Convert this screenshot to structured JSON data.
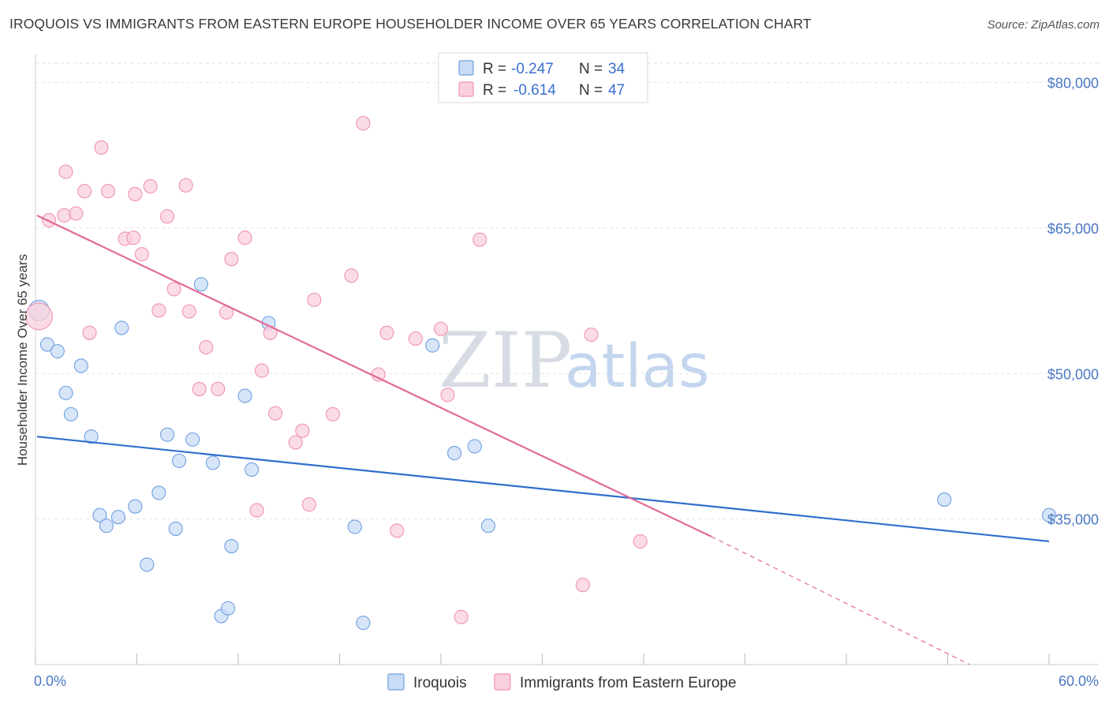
{
  "header": {
    "title": "IROQUOIS VS IMMIGRANTS FROM EASTERN EUROPE HOUSEHOLDER INCOME OVER 65 YEARS CORRELATION CHART",
    "source": "Source: ZipAtlas.com"
  },
  "watermark": {
    "zip": "ZIP",
    "atlas": "atlas"
  },
  "legend": {
    "r_label": "R =",
    "n_label": "N =",
    "series": [
      {
        "r": "-0.247",
        "n": "34"
      },
      {
        "r": "-0.614",
        "n": "47"
      }
    ]
  },
  "bottom_legend": [
    "Iroquois",
    "Immigrants from Eastern Europe"
  ],
  "chart_data": {
    "type": "scatter",
    "ylabel": "Householder Income Over 65 years",
    "xlim": [
      0,
      60
    ],
    "ylim": [
      20000,
      82000
    ],
    "x_tick_labels": [
      "0.0%",
      "60.0%"
    ],
    "y_ticks": [
      35000,
      50000,
      65000,
      80000
    ],
    "y_tick_labels": [
      "$35,000",
      "$50,000",
      "$65,000",
      "$80,000"
    ],
    "grid": "horizontal dashed",
    "legend_position": "top-center",
    "colors": {
      "iroquois": "#6fa0e0",
      "iroquois_fill": "#c9dcf5",
      "eastern": "#f092b0",
      "eastern_fill": "#fad0de",
      "iroquois_line": "#2f6fcc",
      "eastern_line": "#e06a95"
    },
    "series": [
      {
        "name": "Iroquois",
        "points": [
          [
            0.2,
            56500
          ],
          [
            0.7,
            53000
          ],
          [
            1.3,
            52300
          ],
          [
            1.8,
            48000
          ],
          [
            2.1,
            45800
          ],
          [
            2.7,
            50800
          ],
          [
            3.3,
            43500
          ],
          [
            3.8,
            35400
          ],
          [
            4.2,
            34300
          ],
          [
            4.9,
            35200
          ],
          [
            5.1,
            54700
          ],
          [
            5.9,
            36300
          ],
          [
            6.6,
            30300
          ],
          [
            7.3,
            37700
          ],
          [
            7.8,
            43700
          ],
          [
            8.3,
            34000
          ],
          [
            8.5,
            41000
          ],
          [
            9.3,
            43200
          ],
          [
            9.8,
            59200
          ],
          [
            10.5,
            40800
          ],
          [
            11.0,
            25000
          ],
          [
            11.4,
            25800
          ],
          [
            11.6,
            32200
          ],
          [
            12.4,
            47700
          ],
          [
            12.8,
            40100
          ],
          [
            13.8,
            55200
          ],
          [
            18.9,
            34200
          ],
          [
            19.4,
            24300
          ],
          [
            23.5,
            52900
          ],
          [
            24.8,
            41800
          ],
          [
            26.0,
            42500
          ],
          [
            26.8,
            34300
          ],
          [
            53.8,
            37000
          ],
          [
            60.0,
            35400
          ]
        ],
        "trend": {
          "x": [
            0.0,
            60.0
          ],
          "y": [
            43500,
            32700
          ]
        }
      },
      {
        "name": "Immigrants from Eastern Europe",
        "points": [
          [
            0.2,
            55900
          ],
          [
            0.8,
            65800
          ],
          [
            1.7,
            66300
          ],
          [
            1.8,
            70800
          ],
          [
            2.4,
            66500
          ],
          [
            2.9,
            68800
          ],
          [
            3.2,
            54200
          ],
          [
            3.9,
            73300
          ],
          [
            4.3,
            68800
          ],
          [
            5.3,
            63900
          ],
          [
            5.8,
            64000
          ],
          [
            5.9,
            68500
          ],
          [
            6.3,
            62300
          ],
          [
            6.8,
            69300
          ],
          [
            7.3,
            56500
          ],
          [
            7.8,
            66200
          ],
          [
            8.2,
            58700
          ],
          [
            8.9,
            69400
          ],
          [
            9.1,
            56400
          ],
          [
            9.7,
            48400
          ],
          [
            10.1,
            52700
          ],
          [
            10.8,
            48400
          ],
          [
            11.3,
            56300
          ],
          [
            11.6,
            61800
          ],
          [
            12.4,
            64000
          ],
          [
            13.1,
            35900
          ],
          [
            13.4,
            50300
          ],
          [
            13.9,
            54200
          ],
          [
            14.2,
            45900
          ],
          [
            15.4,
            42900
          ],
          [
            15.8,
            44100
          ],
          [
            16.2,
            36500
          ],
          [
            16.5,
            57600
          ],
          [
            17.6,
            45800
          ],
          [
            18.7,
            60100
          ],
          [
            19.4,
            75800
          ],
          [
            20.3,
            49900
          ],
          [
            20.8,
            54200
          ],
          [
            21.4,
            33800
          ],
          [
            22.5,
            53600
          ],
          [
            24.0,
            54600
          ],
          [
            24.4,
            47800
          ],
          [
            25.2,
            24900
          ],
          [
            26.3,
            63800
          ],
          [
            32.4,
            28200
          ],
          [
            32.9,
            54000
          ],
          [
            35.8,
            32700
          ]
        ],
        "trend": {
          "x": [
            0.0,
            40.0
          ],
          "y": [
            66300,
            33200
          ]
        },
        "trend_extension": {
          "x": [
            40.0,
            55.3
          ],
          "y": [
            33200,
            20000
          ]
        }
      }
    ]
  }
}
